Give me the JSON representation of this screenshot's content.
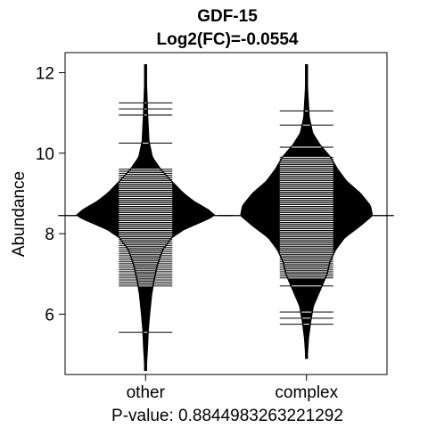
{
  "chart_data": {
    "type": "beanplot",
    "title": "GDF-15",
    "subtitle": "Log2(FC)=-0.0554",
    "ylabel": "Abundance",
    "xlabel": "P-value: 0.8844983263221292",
    "categories": [
      "other",
      "complex"
    ],
    "ylim": [
      4.5,
      12.5
    ],
    "yticks": [
      6,
      8,
      10,
      12
    ],
    "overall_line": 8.45,
    "series": [
      {
        "name": "other",
        "color": "#000000",
        "range": [
          4.6,
          12.2
        ],
        "density": [
          [
            4.6,
            0.01
          ],
          [
            5.2,
            0.03
          ],
          [
            5.6,
            0.04
          ],
          [
            6.0,
            0.06
          ],
          [
            6.5,
            0.09
          ],
          [
            6.8,
            0.12
          ],
          [
            7.2,
            0.17
          ],
          [
            7.6,
            0.25
          ],
          [
            7.9,
            0.38
          ],
          [
            8.1,
            0.55
          ],
          [
            8.3,
            0.82
          ],
          [
            8.45,
            1.0
          ],
          [
            8.6,
            0.9
          ],
          [
            8.8,
            0.7
          ],
          [
            9.0,
            0.55
          ],
          [
            9.3,
            0.38
          ],
          [
            9.6,
            0.22
          ],
          [
            9.9,
            0.1
          ],
          [
            10.3,
            0.05
          ],
          [
            11.0,
            0.03
          ],
          [
            11.5,
            0.02
          ],
          [
            12.2,
            0.005
          ]
        ],
        "observations": [
          5.55,
          6.7,
          6.75,
          6.8,
          6.85,
          6.9,
          6.95,
          7.0,
          7.05,
          7.1,
          7.15,
          7.2,
          7.25,
          7.3,
          7.35,
          7.4,
          7.45,
          7.5,
          7.55,
          7.6,
          7.65,
          7.7,
          7.75,
          7.8,
          7.85,
          7.9,
          7.95,
          8.0,
          8.05,
          8.1,
          8.15,
          8.2,
          8.25,
          8.3,
          8.35,
          8.4,
          8.45,
          8.5,
          8.55,
          8.6,
          8.65,
          8.7,
          8.75,
          8.8,
          8.85,
          8.9,
          8.95,
          9.0,
          9.05,
          9.1,
          9.15,
          9.2,
          9.25,
          9.3,
          9.35,
          9.4,
          9.45,
          9.5,
          9.55,
          9.6,
          10.25,
          10.95,
          11.1,
          11.25
        ]
      },
      {
        "name": "complex",
        "color": "#000000",
        "range": [
          4.9,
          12.2
        ],
        "density": [
          [
            4.9,
            0.01
          ],
          [
            5.4,
            0.03
          ],
          [
            5.8,
            0.06
          ],
          [
            6.2,
            0.1
          ],
          [
            6.6,
            0.2
          ],
          [
            7.0,
            0.3
          ],
          [
            7.3,
            0.34
          ],
          [
            7.6,
            0.42
          ],
          [
            7.9,
            0.55
          ],
          [
            8.2,
            0.78
          ],
          [
            8.45,
            0.95
          ],
          [
            8.7,
            0.92
          ],
          [
            9.0,
            0.78
          ],
          [
            9.3,
            0.58
          ],
          [
            9.6,
            0.45
          ],
          [
            9.9,
            0.35
          ],
          [
            10.2,
            0.2
          ],
          [
            10.5,
            0.09
          ],
          [
            10.9,
            0.04
          ],
          [
            11.5,
            0.02
          ],
          [
            12.2,
            0.005
          ]
        ],
        "observations": [
          5.75,
          5.9,
          6.05,
          6.7,
          6.9,
          6.95,
          7.0,
          7.05,
          7.1,
          7.15,
          7.2,
          7.25,
          7.3,
          7.35,
          7.4,
          7.45,
          7.5,
          7.55,
          7.6,
          7.65,
          7.7,
          7.75,
          7.8,
          7.85,
          7.9,
          7.95,
          8.0,
          8.05,
          8.1,
          8.15,
          8.2,
          8.25,
          8.3,
          8.35,
          8.4,
          8.45,
          8.5,
          8.55,
          8.6,
          8.65,
          8.7,
          8.75,
          8.8,
          8.85,
          8.9,
          8.95,
          9.0,
          9.05,
          9.1,
          9.15,
          9.2,
          9.25,
          9.3,
          9.35,
          9.4,
          9.45,
          9.5,
          9.55,
          9.6,
          9.65,
          9.7,
          9.75,
          9.8,
          9.85,
          9.9,
          10.15,
          10.7,
          11.05
        ]
      }
    ],
    "grid": false,
    "legend": "none"
  }
}
